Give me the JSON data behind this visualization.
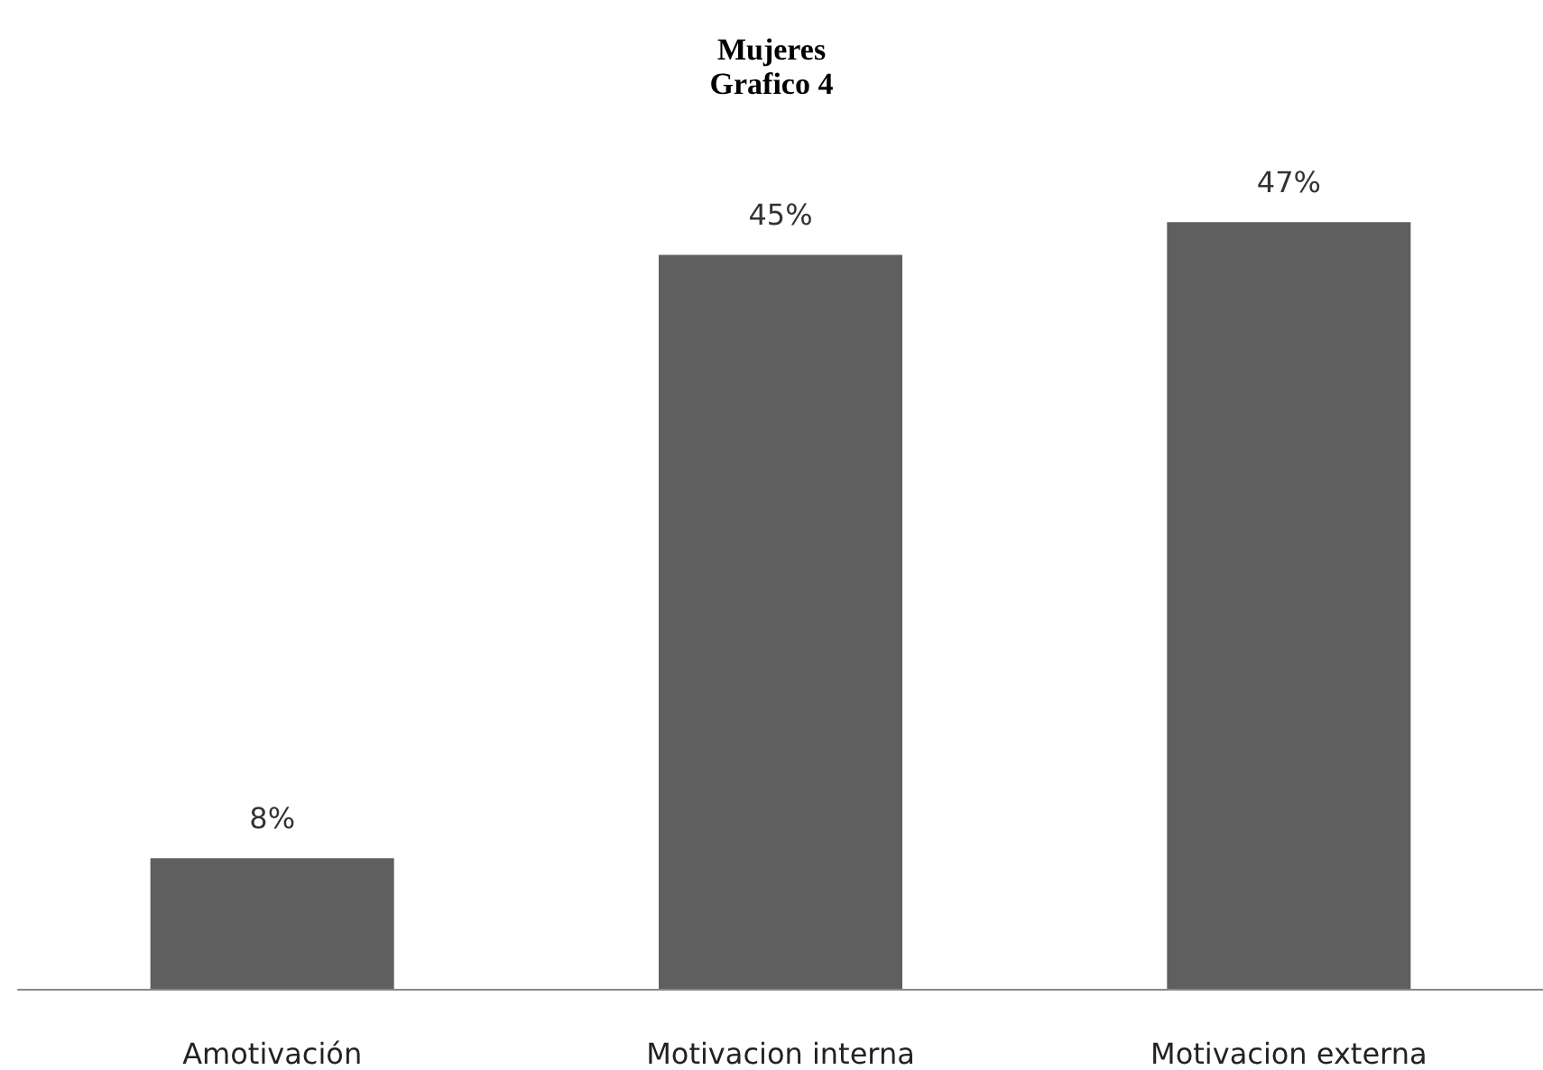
{
  "chart_data": {
    "type": "bar",
    "title": "Mujeres",
    "subtitle": "Grafico 4",
    "categories": [
      "Amotivación",
      "Motivacion interna",
      "Motivacion externa"
    ],
    "values": [
      8,
      45,
      47
    ],
    "value_labels": [
      "8%",
      "45%",
      "47%"
    ],
    "color": "#5f5f5f"
  }
}
